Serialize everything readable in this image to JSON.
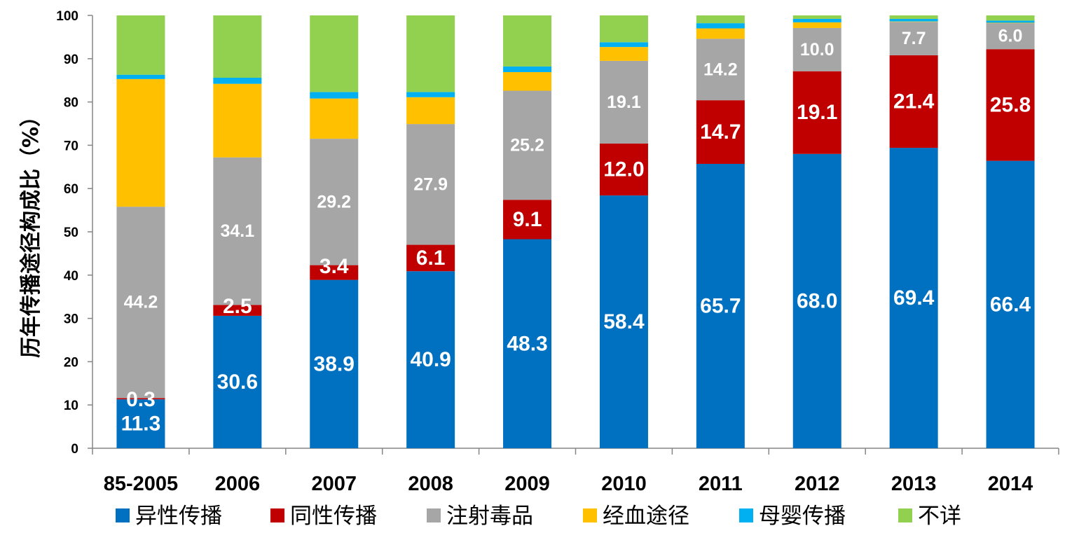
{
  "chart_data": {
    "type": "bar",
    "stacked": true,
    "ylabel": "历年传播途径构成比（%）",
    "ylim": [
      0,
      100
    ],
    "yticks": [
      0,
      10,
      20,
      30,
      40,
      50,
      60,
      70,
      80,
      90,
      100
    ],
    "categories": [
      "85-2005",
      "2006",
      "2007",
      "2008",
      "2009",
      "2010",
      "2011",
      "2012",
      "2013",
      "2014"
    ],
    "series": [
      {
        "name": "异性传播",
        "color": "#0070C0",
        "values": [
          11.3,
          30.6,
          38.9,
          40.9,
          48.3,
          58.4,
          65.7,
          68.0,
          69.4,
          66.4
        ],
        "labels": [
          "11.3",
          "30.6",
          "38.9",
          "40.9",
          "48.3",
          "58.4",
          "65.7",
          "68.0",
          "69.4",
          "66.4"
        ]
      },
      {
        "name": "同性传播",
        "color": "#C00000",
        "values": [
          0.3,
          2.5,
          3.4,
          6.1,
          9.1,
          12.0,
          14.7,
          19.1,
          21.4,
          25.8
        ],
        "labels": [
          "0.3",
          "2.5",
          "3.4",
          "6.1",
          "9.1",
          "12.0",
          "14.7",
          "19.1",
          "21.4",
          "25.8"
        ]
      },
      {
        "name": "注射毒品",
        "color": "#A6A6A6",
        "values": [
          44.2,
          34.1,
          29.2,
          27.9,
          25.2,
          19.1,
          14.2,
          10.0,
          7.7,
          6.0
        ],
        "labels": [
          "44.2",
          "34.1",
          "29.2",
          "27.9",
          "25.2",
          "19.1",
          "14.2",
          "10.0",
          "7.7",
          "6.0"
        ]
      },
      {
        "name": "经血途径",
        "color": "#FFC000",
        "values": [
          29.5,
          17.0,
          9.3,
          6.2,
          4.3,
          3.2,
          2.4,
          1.3,
          0.1,
          0.1
        ]
      },
      {
        "name": "母婴传播",
        "color": "#00B0F0",
        "values": [
          1.0,
          1.4,
          1.5,
          1.2,
          1.3,
          1.1,
          1.2,
          0.8,
          0.6,
          0.5
        ]
      },
      {
        "name": "不详",
        "color": "#92D050",
        "values": [
          13.7,
          14.4,
          17.7,
          17.7,
          11.8,
          6.2,
          1.8,
          0.8,
          0.8,
          1.2
        ]
      }
    ],
    "legend": "bottom"
  }
}
